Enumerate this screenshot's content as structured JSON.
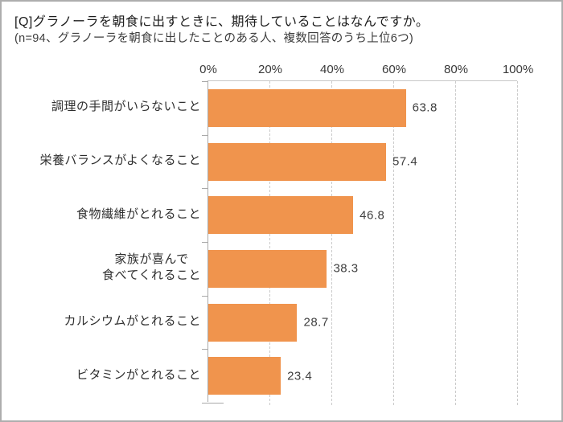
{
  "title": "[Q]グラノーラを朝食に出すときに、期待していることはなんですか。",
  "subtitle": "(n=94、グラノーラを朝食に出したことのある人、複数回答のうち上位6つ)",
  "chart_data": {
    "type": "bar",
    "orientation": "horizontal",
    "title": "[Q]グラノーラを朝食に出すときに、期待していることはなんですか。",
    "subtitle": "(n=94、グラノーラを朝食に出したことのある人、複数回答のうち上位6つ)",
    "categories": [
      "調理の手間がいらないこと",
      "栄養バランスがよくなること",
      "食物繊維がとれること",
      "家族が喜んで食べてくれること",
      "カルシウムがとれること",
      "ビタミンがとれること"
    ],
    "category_display_lines": [
      [
        "調理の手間がいらないこと"
      ],
      [
        "栄養バランスがよくなること"
      ],
      [
        "食物繊維がとれること"
      ],
      [
        "家族が喜んで",
        "食べてくれること"
      ],
      [
        "カルシウムがとれること"
      ],
      [
        "ビタミンがとれること"
      ]
    ],
    "values": [
      63.8,
      57.4,
      46.8,
      38.3,
      28.7,
      23.4
    ],
    "value_labels": [
      "63.8",
      "57.4",
      "46.8",
      "38.3",
      "28.7",
      "23.4"
    ],
    "x_ticks": [
      "0%",
      "20%",
      "40%",
      "60%",
      "80%",
      "100%"
    ],
    "xlim": [
      0,
      100
    ],
    "grid": "dashed-vertical",
    "legend": "none",
    "bar_color": "#f0944d",
    "gridline_color": "#c9c9c9",
    "axis_line_color": "#a9a9a9",
    "text_color": "#3f3f3f"
  }
}
